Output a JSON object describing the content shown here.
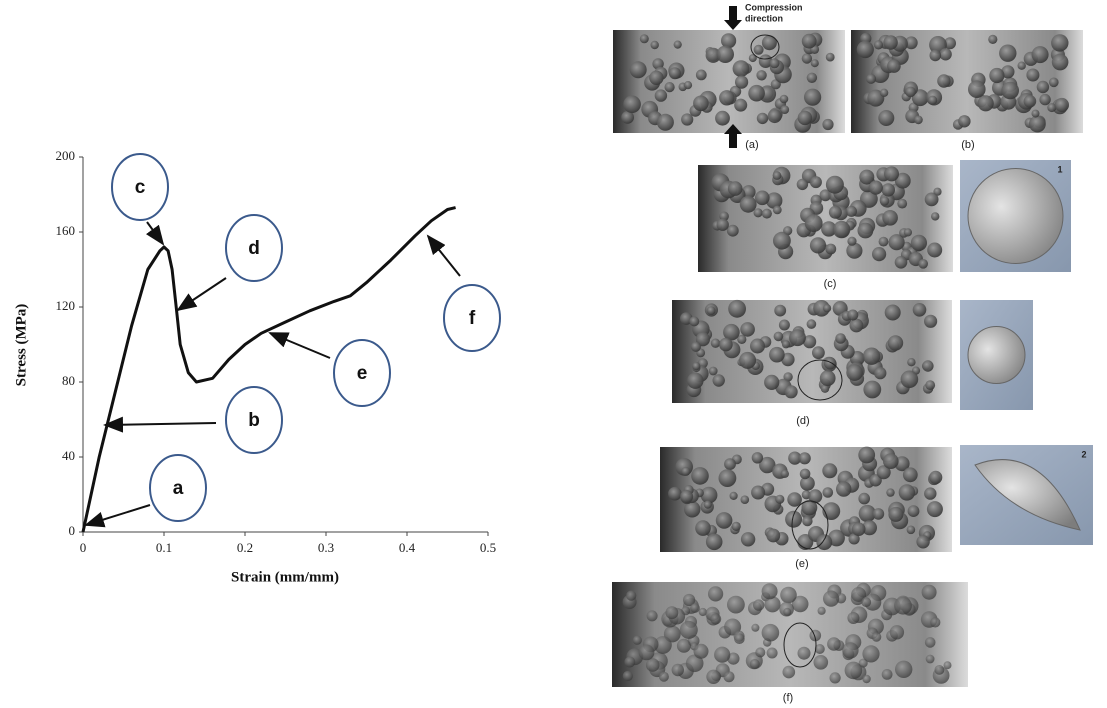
{
  "chart_data": {
    "type": "line",
    "x": [
      0,
      0.02,
      0.04,
      0.06,
      0.08,
      0.095,
      0.1,
      0.105,
      0.11,
      0.115,
      0.12,
      0.13,
      0.14,
      0.16,
      0.18,
      0.2,
      0.22,
      0.25,
      0.28,
      0.31,
      0.33,
      0.35,
      0.38,
      0.41,
      0.43,
      0.45,
      0.46
    ],
    "values": [
      0,
      40,
      75,
      110,
      140,
      150,
      152,
      150,
      140,
      120,
      100,
      85,
      80,
      82,
      92,
      100,
      106,
      112,
      118,
      123,
      126,
      133,
      145,
      158,
      166,
      172,
      173
    ],
    "color": "#111111",
    "xlabel": "Strain (mm/mm)",
    "ylabel": "Stress (MPa)",
    "xlim": [
      0,
      0.5
    ],
    "ylim": [
      0,
      200
    ],
    "xticks": [
      0,
      0.1,
      0.2,
      0.3,
      0.4,
      0.5
    ],
    "yticks": [
      0,
      40,
      80,
      120,
      160,
      200
    ],
    "grid": false,
    "annotations": [
      {
        "label": "a"
      },
      {
        "label": "b"
      },
      {
        "label": "c"
      },
      {
        "label": "d"
      },
      {
        "label": "e"
      },
      {
        "label": "f"
      }
    ]
  },
  "figure": {
    "compression_label": [
      "Compression",
      "direction"
    ],
    "panels": [
      {
        "label": "(a)"
      },
      {
        "label": "(b)"
      },
      {
        "label": "(c)"
      },
      {
        "label": "(d)"
      },
      {
        "label": "(e)"
      },
      {
        "label": "(f)"
      }
    ],
    "inset_labels": [
      "1",
      "2"
    ]
  }
}
